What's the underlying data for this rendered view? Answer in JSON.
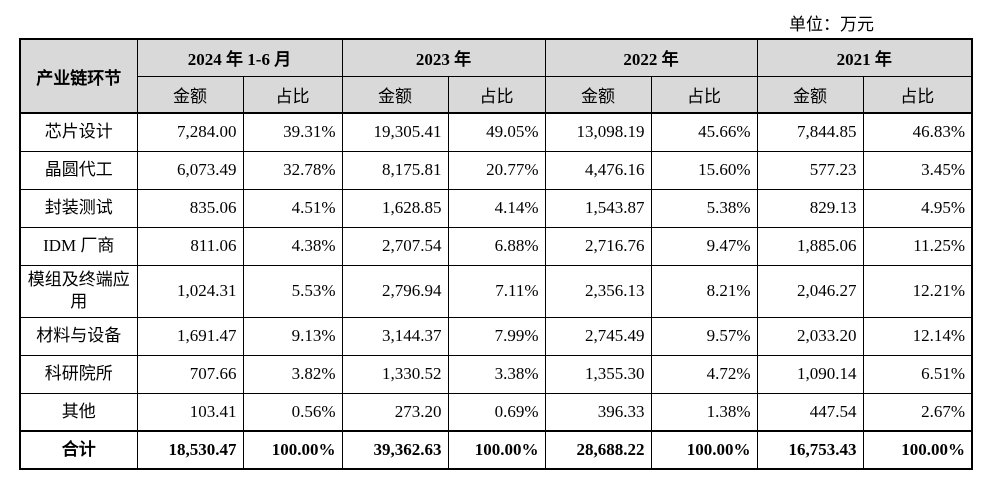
{
  "unit_label": "单位：万元",
  "header": {
    "first_col": "产业链环节",
    "periods": [
      "2024 年 1-6 月",
      "2023 年",
      "2022 年",
      "2021 年"
    ],
    "amount_label": "金额",
    "ratio_label": "占比"
  },
  "rows": [
    {
      "name": "芯片设计",
      "v": [
        "7,284.00",
        "39.31%",
        "19,305.41",
        "49.05%",
        "13,098.19",
        "45.66%",
        "7,844.85",
        "46.83%"
      ]
    },
    {
      "name": "晶圆代工",
      "v": [
        "6,073.49",
        "32.78%",
        "8,175.81",
        "20.77%",
        "4,476.16",
        "15.60%",
        "577.23",
        "3.45%"
      ]
    },
    {
      "name": "封装测试",
      "v": [
        "835.06",
        "4.51%",
        "1,628.85",
        "4.14%",
        "1,543.87",
        "5.38%",
        "829.13",
        "4.95%"
      ]
    },
    {
      "name": "IDM 厂商",
      "v": [
        "811.06",
        "4.38%",
        "2,707.54",
        "6.88%",
        "2,716.76",
        "9.47%",
        "1,885.06",
        "11.25%"
      ]
    },
    {
      "name": "模组及终端应用",
      "v": [
        "1,024.31",
        "5.53%",
        "2,796.94",
        "7.11%",
        "2,356.13",
        "8.21%",
        "2,046.27",
        "12.21%"
      ]
    },
    {
      "name": "材料与设备",
      "v": [
        "1,691.47",
        "9.13%",
        "3,144.37",
        "7.99%",
        "2,745.49",
        "9.57%",
        "2,033.20",
        "12.14%"
      ]
    },
    {
      "name": "科研院所",
      "v": [
        "707.66",
        "3.82%",
        "1,330.52",
        "3.38%",
        "1,355.30",
        "4.72%",
        "1,090.14",
        "6.51%"
      ]
    },
    {
      "name": "其他",
      "v": [
        "103.41",
        "0.56%",
        "273.20",
        "0.69%",
        "396.33",
        "1.38%",
        "447.54",
        "2.67%"
      ]
    }
  ],
  "total": {
    "name": "合计",
    "v": [
      "18,530.47",
      "100.00%",
      "39,362.63",
      "100.00%",
      "28,688.22",
      "100.00%",
      "16,753.43",
      "100.00%"
    ]
  }
}
